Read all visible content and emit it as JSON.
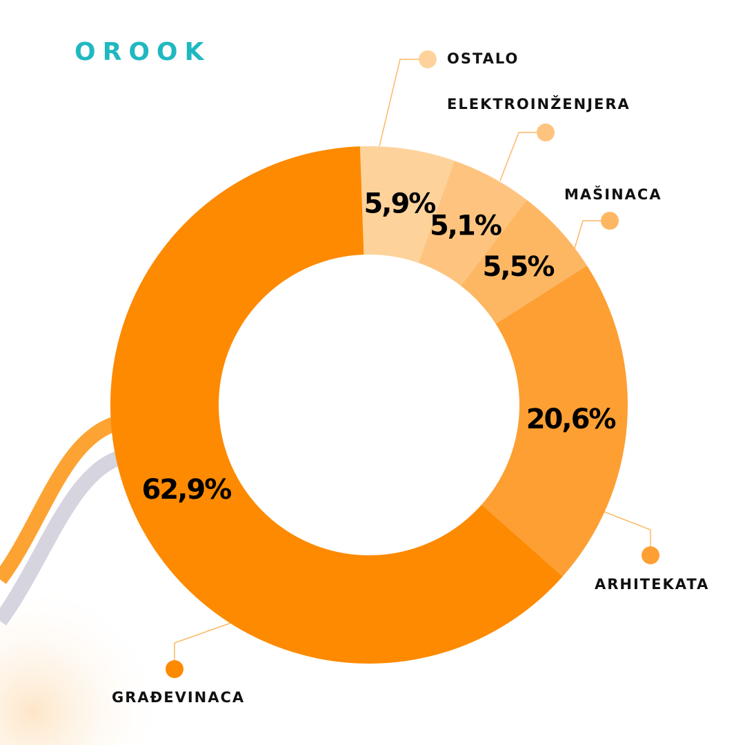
{
  "logo": "OROOK",
  "chart_data": {
    "type": "donut",
    "categories": [
      "OSTALO",
      "ELEKTROINŽENJERA",
      "MAŠINACA",
      "ARHITEKATA",
      "GRAĐEVINACA"
    ],
    "values": [
      5.9,
      5.1,
      5.5,
      20.6,
      62.9
    ],
    "value_labels": [
      "5,9%",
      "5,1%",
      "5,5%",
      "20,6%",
      "62,9%"
    ],
    "colors": [
      "#fdd39b",
      "#fec47f",
      "#fdb763",
      "#fd9f33",
      "#fd8a00"
    ]
  }
}
